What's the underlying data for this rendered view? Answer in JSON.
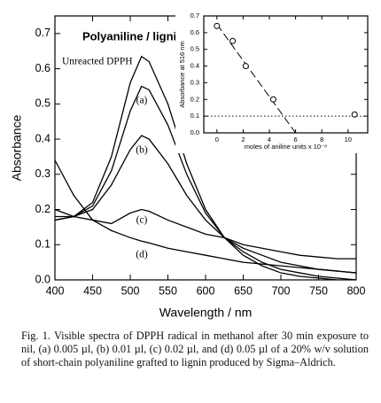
{
  "chart_data": [
    {
      "type": "line",
      "title": "Polyaniline / lignin",
      "xlabel": "Wavelength  /  nm",
      "ylabel": "Absorbance",
      "x": [
        400,
        425,
        450,
        475,
        500,
        515,
        525,
        550,
        575,
        600,
        625,
        650,
        675,
        700,
        725,
        750,
        775,
        800
      ],
      "series": [
        {
          "name": "Unreacted DPPH",
          "color": "#000000",
          "values": [
            0.17,
            0.18,
            0.22,
            0.35,
            0.56,
            0.635,
            0.62,
            0.5,
            0.33,
            0.2,
            0.12,
            0.07,
            0.04,
            0.02,
            0.01,
            0.005,
            0.0,
            0.0
          ]
        },
        {
          "name": "(a)",
          "color": "#000000",
          "values": [
            0.17,
            0.18,
            0.21,
            0.31,
            0.48,
            0.55,
            0.54,
            0.44,
            0.3,
            0.19,
            0.12,
            0.08,
            0.05,
            0.03,
            0.02,
            0.01,
            0.005,
            0.0
          ]
        },
        {
          "name": "(b)",
          "color": "#000000",
          "values": [
            0.18,
            0.18,
            0.2,
            0.27,
            0.37,
            0.41,
            0.4,
            0.33,
            0.24,
            0.17,
            0.12,
            0.09,
            0.07,
            0.05,
            0.04,
            0.03,
            0.025,
            0.02
          ]
        },
        {
          "name": "(c)",
          "color": "#000000",
          "values": [
            0.2,
            0.18,
            0.17,
            0.16,
            0.19,
            0.2,
            0.195,
            0.17,
            0.15,
            0.13,
            0.12,
            0.1,
            0.09,
            0.08,
            0.07,
            0.065,
            0.06,
            0.06
          ]
        },
        {
          "name": "(d)",
          "color": "#000000",
          "values": [
            0.34,
            0.24,
            0.17,
            0.14,
            0.12,
            0.11,
            0.105,
            0.09,
            0.08,
            0.07,
            0.06,
            0.05,
            0.045,
            0.04,
            0.035,
            0.03,
            0.025,
            0.02
          ]
        }
      ],
      "xlim": [
        400,
        800
      ],
      "xticks": [
        400,
        450,
        500,
        550,
        600,
        650,
        700,
        750,
        800
      ],
      "ylim": [
        0,
        0.75
      ],
      "yticks": [
        0.0,
        0.1,
        0.2,
        0.3,
        0.4,
        0.5,
        0.6,
        0.7
      ]
    },
    {
      "type": "scatter",
      "xlabel": "moles of aniline units x 10⁻⁸",
      "ylabel": "Absorbance at 516 nm",
      "series": [
        {
          "style": "dashed",
          "color": "#000000",
          "x": [
            0,
            6
          ],
          "values": [
            0.65,
            0.0
          ]
        },
        {
          "style": "dotted",
          "color": "#000000",
          "x": [
            -1,
            11.5
          ],
          "values": [
            0.1,
            0.1
          ]
        },
        {
          "style": "markers",
          "color": "#000000",
          "x": [
            0,
            1.2,
            2.2,
            4.3,
            10.5
          ],
          "values": [
            0.64,
            0.55,
            0.4,
            0.2,
            0.11
          ]
        }
      ],
      "xlim": [
        -1,
        11.5
      ],
      "xticks": [
        0,
        2,
        4,
        6,
        8,
        10
      ],
      "ylim": [
        0,
        0.7
      ],
      "yticks": [
        0.0,
        0.1,
        0.2,
        0.3,
        0.4,
        0.5,
        0.6,
        0.7
      ]
    }
  ],
  "caption": "Fig. 1. Visible spectra of DPPH radical in methanol after 30 min exposure to nil, (a) 0.005 µl, (b) 0.01 µl, (c) 0.02 µl, and (d) 0.05 µl of a 20% w/v solution of short-chain polyaniline grafted to lignin produced by Sigma–Aldrich."
}
